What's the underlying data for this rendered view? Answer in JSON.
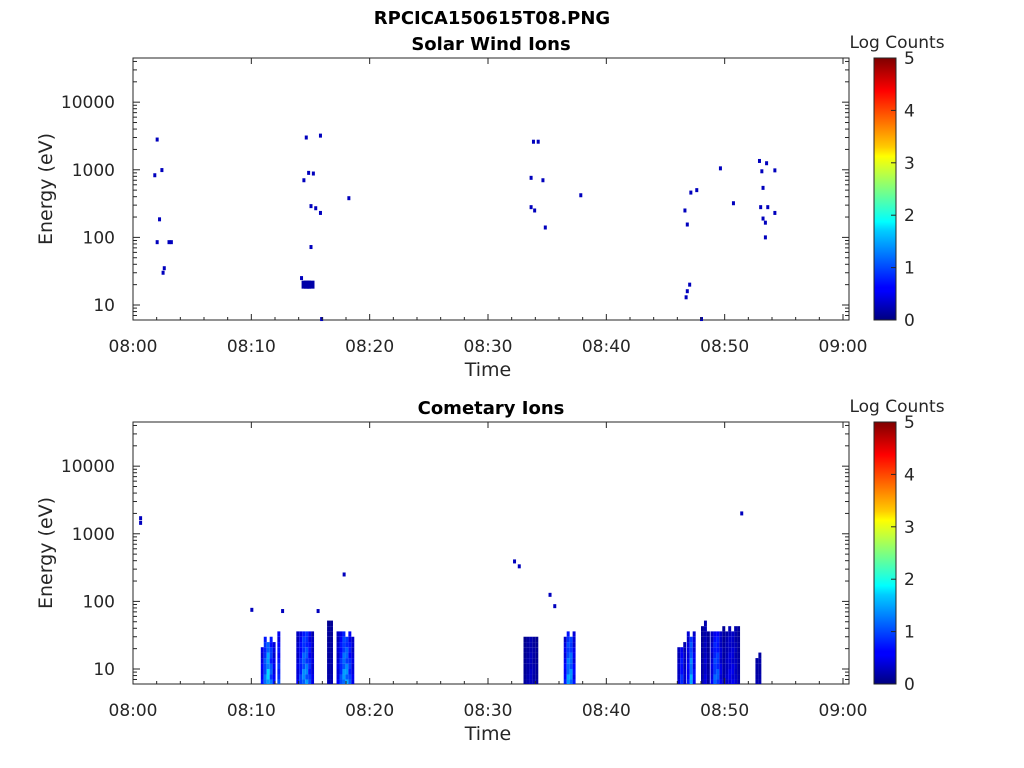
{
  "figure_title": "RPCICA150615T08.PNG",
  "chart_data": [
    {
      "type": "heatmap",
      "title": "Solar Wind Ions",
      "xlabel": "Time",
      "ylabel": "Energy (eV)",
      "x_ticks": [
        "08:00",
        "08:10",
        "08:20",
        "08:30",
        "08:40",
        "08:50",
        "09:00"
      ],
      "x_range_minutes": [
        0,
        60
      ],
      "y_scale": "log",
      "y_ticks": [
        "10",
        "100",
        "1000",
        "10000"
      ],
      "y_range": [
        6,
        45000
      ],
      "colorbar": {
        "label": "Log Counts",
        "ticks": [
          "0",
          "1",
          "2",
          "3",
          "4",
          "5"
        ],
        "range": [
          0,
          5
        ],
        "colormap": "jet"
      },
      "points": [
        {
          "t": 1.8,
          "e": 830,
          "v": 0.3
        },
        {
          "t": 2.0,
          "e": 2800,
          "v": 0.3
        },
        {
          "t": 2.4,
          "e": 990,
          "v": 0.3
        },
        {
          "t": 2.2,
          "e": 185,
          "v": 0.3
        },
        {
          "t": 2.0,
          "e": 85,
          "v": 0.3
        },
        {
          "t": 3.0,
          "e": 85,
          "v": 0.3
        },
        {
          "t": 3.2,
          "e": 85,
          "v": 0.3
        },
        {
          "t": 2.6,
          "e": 35,
          "v": 0.3
        },
        {
          "t": 2.5,
          "e": 30,
          "v": 0.3
        },
        {
          "t": 14.6,
          "e": 3000,
          "v": 0.3
        },
        {
          "t": 15.8,
          "e": 3200,
          "v": 0.3
        },
        {
          "t": 14.8,
          "e": 900,
          "v": 0.3
        },
        {
          "t": 15.2,
          "e": 880,
          "v": 0.3
        },
        {
          "t": 14.4,
          "e": 700,
          "v": 0.3
        },
        {
          "t": 15.0,
          "e": 290,
          "v": 0.3
        },
        {
          "t": 15.4,
          "e": 270,
          "v": 0.3
        },
        {
          "t": 15.8,
          "e": 230,
          "v": 0.3
        },
        {
          "t": 18.2,
          "e": 380,
          "v": 0.3
        },
        {
          "t": 15.0,
          "e": 72,
          "v": 0.3
        },
        {
          "t": 14.2,
          "e": 25,
          "v": 0.3
        },
        {
          "t": 14.5,
          "e": 20,
          "v": 0.2
        },
        {
          "t": 14.7,
          "e": 20,
          "v": 0.2
        },
        {
          "t": 15.0,
          "e": 20,
          "v": 0.2
        },
        {
          "t": 15.9,
          "e": 6.2,
          "v": 0.3
        },
        {
          "t": 33.8,
          "e": 2600,
          "v": 0.3
        },
        {
          "t": 34.2,
          "e": 2600,
          "v": 0.3
        },
        {
          "t": 33.6,
          "e": 760,
          "v": 0.3
        },
        {
          "t": 34.6,
          "e": 700,
          "v": 0.3
        },
        {
          "t": 37.8,
          "e": 420,
          "v": 0.3
        },
        {
          "t": 33.6,
          "e": 280,
          "v": 0.3
        },
        {
          "t": 33.9,
          "e": 250,
          "v": 0.3
        },
        {
          "t": 34.8,
          "e": 140,
          "v": 0.3
        },
        {
          "t": 49.6,
          "e": 1050,
          "v": 0.3
        },
        {
          "t": 47.1,
          "e": 460,
          "v": 0.3
        },
        {
          "t": 47.6,
          "e": 500,
          "v": 0.3
        },
        {
          "t": 46.6,
          "e": 250,
          "v": 0.3
        },
        {
          "t": 46.8,
          "e": 155,
          "v": 0.3
        },
        {
          "t": 50.7,
          "e": 320,
          "v": 0.3
        },
        {
          "t": 52.9,
          "e": 1350,
          "v": 0.3
        },
        {
          "t": 53.5,
          "e": 1250,
          "v": 0.3
        },
        {
          "t": 54.2,
          "e": 980,
          "v": 0.3
        },
        {
          "t": 53.1,
          "e": 950,
          "v": 0.3
        },
        {
          "t": 53.2,
          "e": 540,
          "v": 0.3
        },
        {
          "t": 53.0,
          "e": 280,
          "v": 0.3
        },
        {
          "t": 53.6,
          "e": 280,
          "v": 0.3
        },
        {
          "t": 54.2,
          "e": 230,
          "v": 0.3
        },
        {
          "t": 53.2,
          "e": 190,
          "v": 0.3
        },
        {
          "t": 53.4,
          "e": 165,
          "v": 0.3
        },
        {
          "t": 53.4,
          "e": 100,
          "v": 0.3
        },
        {
          "t": 47.0,
          "e": 20,
          "v": 0.3
        },
        {
          "t": 46.8,
          "e": 16,
          "v": 0.3
        },
        {
          "t": 46.7,
          "e": 13,
          "v": 0.3
        },
        {
          "t": 48.0,
          "e": 6.2,
          "v": 0.3
        }
      ]
    },
    {
      "type": "heatmap",
      "title": "Cometary Ions",
      "xlabel": "Time",
      "ylabel": "Energy (eV)",
      "x_ticks": [
        "08:00",
        "08:10",
        "08:20",
        "08:30",
        "08:40",
        "08:50",
        "09:00"
      ],
      "x_range_minutes": [
        0,
        60
      ],
      "y_scale": "log",
      "y_ticks": [
        "10",
        "100",
        "1000",
        "10000"
      ],
      "y_range": [
        6,
        45000
      ],
      "colorbar": {
        "label": "Log Counts",
        "ticks": [
          "0",
          "1",
          "2",
          "3",
          "4",
          "5"
        ],
        "range": [
          0,
          5
        ],
        "colormap": "jet"
      },
      "points": [
        {
          "t": 0.6,
          "e": 1700,
          "v": 0.3
        },
        {
          "t": 0.6,
          "e": 1450,
          "v": 0.3
        },
        {
          "t": 10.0,
          "e": 75,
          "v": 0.3
        },
        {
          "t": 12.6,
          "e": 72,
          "v": 0.3
        },
        {
          "t": 15.6,
          "e": 72,
          "v": 0.3
        },
        {
          "t": 17.8,
          "e": 250,
          "v": 0.3
        },
        {
          "t": 32.2,
          "e": 390,
          "v": 0.3
        },
        {
          "t": 32.6,
          "e": 330,
          "v": 0.3
        },
        {
          "t": 35.2,
          "e": 125,
          "v": 0.3
        },
        {
          "t": 35.6,
          "e": 85,
          "v": 0.3
        },
        {
          "t": 51.4,
          "e": 2000,
          "v": 0.3
        }
      ],
      "bursts": [
        {
          "t0": 10.8,
          "t1": 12.0,
          "e_top": 26,
          "v_peak": 1.9
        },
        {
          "t0": 12.2,
          "t1": 12.5,
          "e_top": 36,
          "v_peak": 1.0
        },
        {
          "t0": 13.8,
          "t1": 15.4,
          "e_top": 36,
          "v_peak": 1.7
        },
        {
          "t0": 16.4,
          "t1": 17.0,
          "e_top": 55,
          "v_peak": 0.4
        },
        {
          "t0": 17.2,
          "t1": 18.6,
          "e_top": 36,
          "v_peak": 1.8
        },
        {
          "t0": 33.0,
          "t1": 34.2,
          "e_top": 30,
          "v_peak": 0.4
        },
        {
          "t0": 36.4,
          "t1": 37.4,
          "e_top": 36,
          "v_peak": 1.9
        },
        {
          "t0": 46.0,
          "t1": 46.8,
          "e_top": 22,
          "v_peak": 0.9
        },
        {
          "t0": 46.8,
          "t1": 47.6,
          "e_top": 36,
          "v_peak": 1.6
        },
        {
          "t0": 48.0,
          "t1": 48.8,
          "e_top": 45,
          "v_peak": 0.5
        },
        {
          "t0": 48.8,
          "t1": 49.8,
          "e_top": 36,
          "v_peak": 1.5
        },
        {
          "t0": 49.8,
          "t1": 51.2,
          "e_top": 42,
          "v_peak": 0.7
        },
        {
          "t0": 52.6,
          "t1": 53.2,
          "e_top": 16,
          "v_peak": 0.4
        }
      ]
    }
  ]
}
